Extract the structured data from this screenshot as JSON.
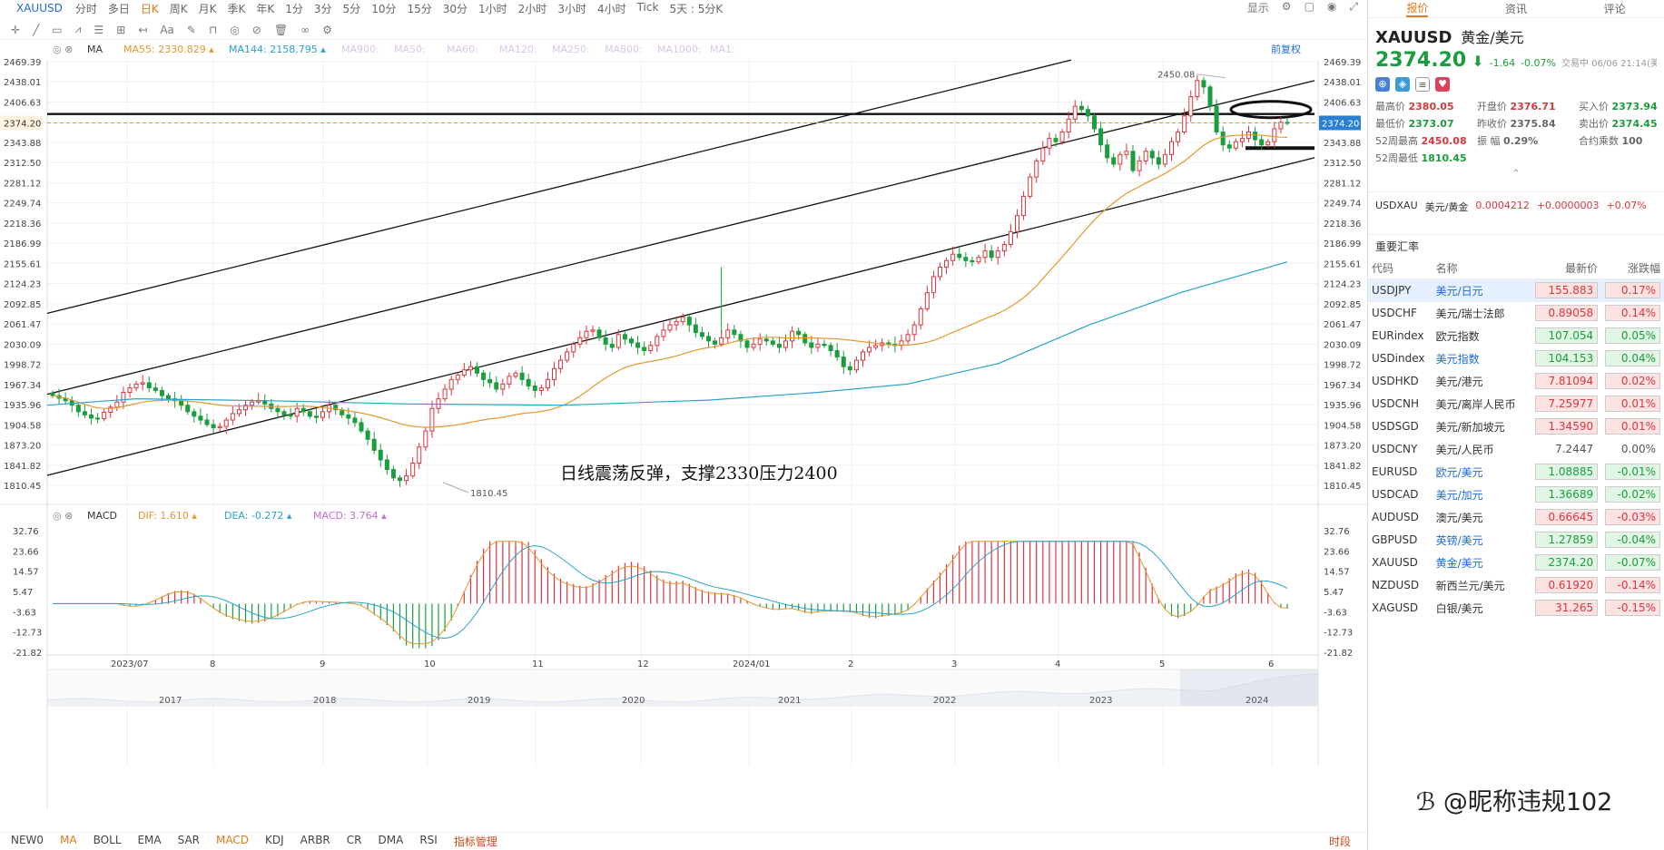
{
  "toolbar": {
    "symbol": "XAUUSD",
    "periods": [
      "分时",
      "多日",
      "日K",
      "周K",
      "月K",
      "季K",
      "年K",
      "1分",
      "3分",
      "5分",
      "10分",
      "15分",
      "30分",
      "1小时",
      "2小时",
      "3小时",
      "4小时",
      "Tick",
      "5天 : 5分K"
    ],
    "active_period": "日K",
    "display_label": "显示"
  },
  "indicator_bar": {
    "label": "MA",
    "ma55_label": "MA55:",
    "ma55_value": "2330.829",
    "ma144_label": "MA144:",
    "ma144_value": "2158.795",
    "inactive": [
      "MA900:",
      "MA50:",
      "MA60:",
      "MA120:",
      "MA250:",
      "MA800:",
      "MA1000:",
      "MA1:"
    ],
    "adjust_label": "前复权"
  },
  "price_axis": [
    "2469.39",
    "2438.01",
    "2406.63",
    "2374.20",
    "2343.88",
    "2312.50",
    "2281.12",
    "2249.74",
    "2218.36",
    "2186.99",
    "2155.61",
    "2124.23",
    "2092.85",
    "2061.47",
    "2030.09",
    "1998.72",
    "1967.34",
    "1935.96",
    "1904.58",
    "1873.20",
    "1841.82",
    "1810.45"
  ],
  "current_price_tag": "2374.20",
  "high_label": "2450.08",
  "low_label": "1810.45",
  "annotation": "日线震荡反弹，支撑2330压力2400",
  "macd_bar": {
    "label": "MACD",
    "dif_label": "DIF:",
    "dif_value": "1.610",
    "dea_label": "DEA:",
    "dea_value": "-0.272",
    "macd_label": "MACD:",
    "macd_value": "3.764"
  },
  "macd_axis": [
    "32.76",
    "23.66",
    "14.57",
    "5.47",
    "-3.63",
    "-12.73",
    "-21.82"
  ],
  "time_axis": [
    "2023/07",
    "8",
    "9",
    "10",
    "11",
    "12",
    "2024/01",
    "2",
    "3",
    "4",
    "5",
    "6"
  ],
  "overview_years": [
    "2017",
    "2018",
    "2019",
    "2020",
    "2021",
    "2022",
    "2023",
    "2024"
  ],
  "bottom_tabs": [
    "NEW0",
    "MA",
    "BOLL",
    "EMA",
    "SAR",
    "MACD",
    "KDJ",
    "ARBR",
    "CR",
    "DMA",
    "RSI",
    "指标管理"
  ],
  "bottom_right": "时段",
  "right_panel": {
    "tabs": [
      "报价",
      "资讯",
      "评论"
    ],
    "symbol": "XAUUSD",
    "name": "黄金/美元",
    "price": "2374.20",
    "change": "-1.64",
    "change_pct": "-0.07%",
    "status": "交易中 06/06 21:14(美",
    "stats": [
      {
        "label": "最高价",
        "value": "2380.05",
        "color": "red"
      },
      {
        "label": "开盘价",
        "value": "2376.71",
        "color": "red"
      },
      {
        "label": "买入价",
        "value": "2373.94",
        "color": "grn"
      },
      {
        "label": "最低价",
        "value": "2373.07",
        "color": "grn"
      },
      {
        "label": "昨收价",
        "value": "2375.84",
        "color": "plain"
      },
      {
        "label": "卖出价",
        "value": "2374.45",
        "color": "grn"
      },
      {
        "label": "52周最高",
        "value": "2450.08",
        "color": "red"
      },
      {
        "label": "振    幅",
        "value": "0.29%",
        "color": "plain"
      },
      {
        "label": "合约乘数",
        "value": "100",
        "color": "plain"
      },
      {
        "label": "52周最低",
        "value": "1810.45",
        "color": "grn"
      }
    ],
    "conversion": {
      "symbol": "USDXAU",
      "name": "美元/黄金",
      "price": "0.0004212",
      "change": "+0.0000003",
      "pct": "+0.07%"
    },
    "section_title": "重要汇率",
    "table_headers": [
      "代码",
      "名称",
      "最新价",
      "涨跌幅"
    ],
    "rows": [
      {
        "code": "USDJPY",
        "name": "美元/日元",
        "price": "155.883",
        "pct": "0.17%",
        "dir": "up",
        "blue": true,
        "sel": true
      },
      {
        "code": "USDCHF",
        "name": "美元/瑞士法郎",
        "price": "0.89058",
        "pct": "0.14%",
        "dir": "up",
        "blue": false
      },
      {
        "code": "EURindex",
        "name": "欧元指数",
        "price": "107.054",
        "pct": "0.05%",
        "dir": "dn",
        "blue": false
      },
      {
        "code": "USDindex",
        "name": "美元指数",
        "price": "104.153",
        "pct": "0.04%",
        "dir": "dn",
        "blue": true
      },
      {
        "code": "USDHKD",
        "name": "美元/港元",
        "price": "7.81094",
        "pct": "0.02%",
        "dir": "up",
        "blue": false
      },
      {
        "code": "USDCNH",
        "name": "美元/离岸人民币",
        "price": "7.25977",
        "pct": "0.01%",
        "dir": "up",
        "blue": false
      },
      {
        "code": "USDSGD",
        "name": "美元/新加坡元",
        "price": "1.34590",
        "pct": "0.01%",
        "dir": "up",
        "blue": false
      },
      {
        "code": "USDCNY",
        "name": "美元/人民币",
        "price": "7.2447",
        "pct": "0.00%",
        "dir": "fl",
        "blue": false
      },
      {
        "code": "EURUSD",
        "name": "欧元/美元",
        "price": "1.08885",
        "pct": "-0.01%",
        "dir": "dn",
        "blue": true
      },
      {
        "code": "USDCAD",
        "name": "美元/加元",
        "price": "1.36689",
        "pct": "-0.02%",
        "dir": "dn",
        "blue": true
      },
      {
        "code": "AUDUSD",
        "name": "澳元/美元",
        "price": "0.66645",
        "pct": "-0.03%",
        "dir": "up",
        "blue": false
      },
      {
        "code": "GBPUSD",
        "name": "英镑/美元",
        "price": "1.27859",
        "pct": "-0.04%",
        "dir": "dn",
        "blue": true
      },
      {
        "code": "XAUUSD",
        "name": "黄金/美元",
        "price": "2374.20",
        "pct": "-0.07%",
        "dir": "dn",
        "blue": true
      },
      {
        "code": "NZDUSD",
        "name": "新西兰元/美元",
        "price": "0.61920",
        "pct": "-0.14%",
        "dir": "up",
        "blue": false
      },
      {
        "code": "XAGUSD",
        "name": "白银/美元",
        "price": "31.265",
        "pct": "-0.15%",
        "dir": "up",
        "blue": false
      }
    ]
  },
  "watermark": "@昵称违规102",
  "colors": {
    "up": "#d9363e",
    "down": "#1a9d3c",
    "ma55": "#e8962e",
    "ma144": "#27a3c9",
    "accent": "#e07a1a"
  }
}
